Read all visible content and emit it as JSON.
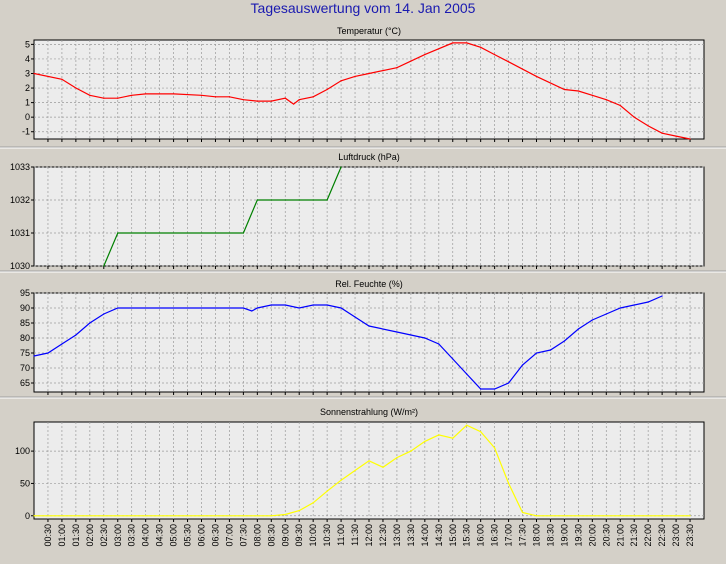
{
  "page_title": "Tagesauswertung vom 14. Jan 2005",
  "colors": {
    "temperature": "#ff0000",
    "pressure": "#008000",
    "humidity": "#0000ff",
    "radiation": "#ffff00",
    "background": "#d4d0c8",
    "plot": "#ececec",
    "title": "#1a1ab0"
  },
  "x_ticks": [
    "00:30",
    "01:00",
    "01:30",
    "02:00",
    "02:30",
    "03:00",
    "03:30",
    "04:00",
    "04:30",
    "05:00",
    "05:30",
    "06:00",
    "06:30",
    "07:00",
    "07:30",
    "08:00",
    "08:30",
    "09:00",
    "09:30",
    "10:00",
    "10:30",
    "11:00",
    "11:30",
    "12:00",
    "12:30",
    "13:00",
    "13:30",
    "14:00",
    "14:30",
    "15:00",
    "15:30",
    "16:00",
    "16:30",
    "17:00",
    "17:30",
    "18:00",
    "18:30",
    "19:00",
    "19:30",
    "20:00",
    "20:30",
    "21:00",
    "21:30",
    "22:00",
    "22:30",
    "23:00",
    "23:30"
  ],
  "chart_data": [
    {
      "type": "line",
      "title": "Temperatur (°C)",
      "ylim": [
        -1.5,
        5.3
      ],
      "yticks": [
        -1,
        0,
        1,
        2,
        3,
        4,
        5
      ],
      "grid": true,
      "series": [
        {
          "color": "#ff0000",
          "x": [
            0.0,
            1.0,
            1.5,
            2.0,
            2.5,
            3.0,
            3.5,
            4.0,
            5.0,
            6.0,
            6.5,
            7.0,
            7.5,
            8.0,
            8.5,
            9.0,
            9.3,
            9.5,
            10.0,
            10.5,
            11.0,
            11.5,
            12.0,
            13.0,
            14.0,
            15.0,
            15.5,
            16.0,
            16.5,
            17.0,
            18.0,
            19.0,
            19.5,
            20.0,
            20.5,
            21.0,
            21.5,
            22.0,
            22.5,
            23.0,
            23.5
          ],
          "y": [
            3.0,
            2.6,
            2.0,
            1.5,
            1.3,
            1.3,
            1.5,
            1.6,
            1.6,
            1.5,
            1.4,
            1.4,
            1.2,
            1.1,
            1.1,
            1.3,
            0.9,
            1.2,
            1.4,
            1.9,
            2.5,
            2.8,
            3.0,
            3.4,
            4.3,
            5.1,
            5.1,
            4.8,
            4.3,
            3.8,
            2.8,
            1.9,
            1.8,
            1.5,
            1.2,
            0.8,
            0.0,
            -0.6,
            -1.1,
            -1.3,
            -1.5
          ]
        }
      ]
    },
    {
      "type": "line",
      "title": "Luftdruck (hPa)",
      "ylim": [
        1030,
        1033
      ],
      "yticks": [
        1030,
        1031,
        1032,
        1033
      ],
      "grid": true,
      "series": [
        {
          "color": "#008000",
          "x": [
            2.5,
            3.0,
            7.5,
            8.0,
            10.5,
            11.0
          ],
          "y": [
            1030,
            1031,
            1031,
            1032,
            1032,
            1033
          ]
        }
      ]
    },
    {
      "type": "line",
      "title": "Rel. Feuchte (%)",
      "ylim": [
        62,
        95
      ],
      "yticks": [
        65,
        70,
        75,
        80,
        85,
        90,
        95
      ],
      "grid": true,
      "series": [
        {
          "color": "#0000ff",
          "x": [
            0.0,
            0.5,
            1.0,
            1.5,
            2.0,
            2.5,
            3.0,
            7.5,
            7.8,
            8.0,
            8.5,
            9.0,
            9.5,
            10.0,
            10.5,
            11.0,
            11.5,
            12.0,
            13.0,
            13.5,
            14.0,
            14.5,
            15.0,
            15.5,
            16.0,
            16.5,
            17.0,
            17.5,
            18.0,
            18.5,
            19.0,
            19.5,
            20.0,
            20.5,
            21.0,
            21.5,
            22.0,
            22.5
          ],
          "y": [
            74,
            75,
            78,
            81,
            85,
            88,
            90,
            90,
            89,
            90,
            91,
            91,
            90,
            91,
            91,
            90,
            87,
            84,
            82,
            81,
            80,
            78,
            73,
            68,
            63,
            63,
            65,
            71,
            75,
            76,
            79,
            83,
            86,
            88,
            90,
            91,
            92,
            94
          ]
        }
      ]
    },
    {
      "type": "line",
      "title": "Sonnenstrahlung (W/m²)",
      "ylim": [
        -5,
        145
      ],
      "yticks": [
        0,
        50,
        100
      ],
      "grid": true,
      "series": [
        {
          "color": "#ffff00",
          "x": [
            0.0,
            8.5,
            9.0,
            9.5,
            10.0,
            10.5,
            11.0,
            11.5,
            12.0,
            12.5,
            13.0,
            13.5,
            14.0,
            14.5,
            15.0,
            15.5,
            16.0,
            16.5,
            17.0,
            17.5,
            18.0,
            23.5
          ],
          "y": [
            0,
            0,
            2,
            8,
            20,
            38,
            55,
            70,
            85,
            75,
            90,
            100,
            115,
            125,
            120,
            140,
            130,
            105,
            50,
            5,
            0,
            0
          ]
        }
      ]
    }
  ]
}
